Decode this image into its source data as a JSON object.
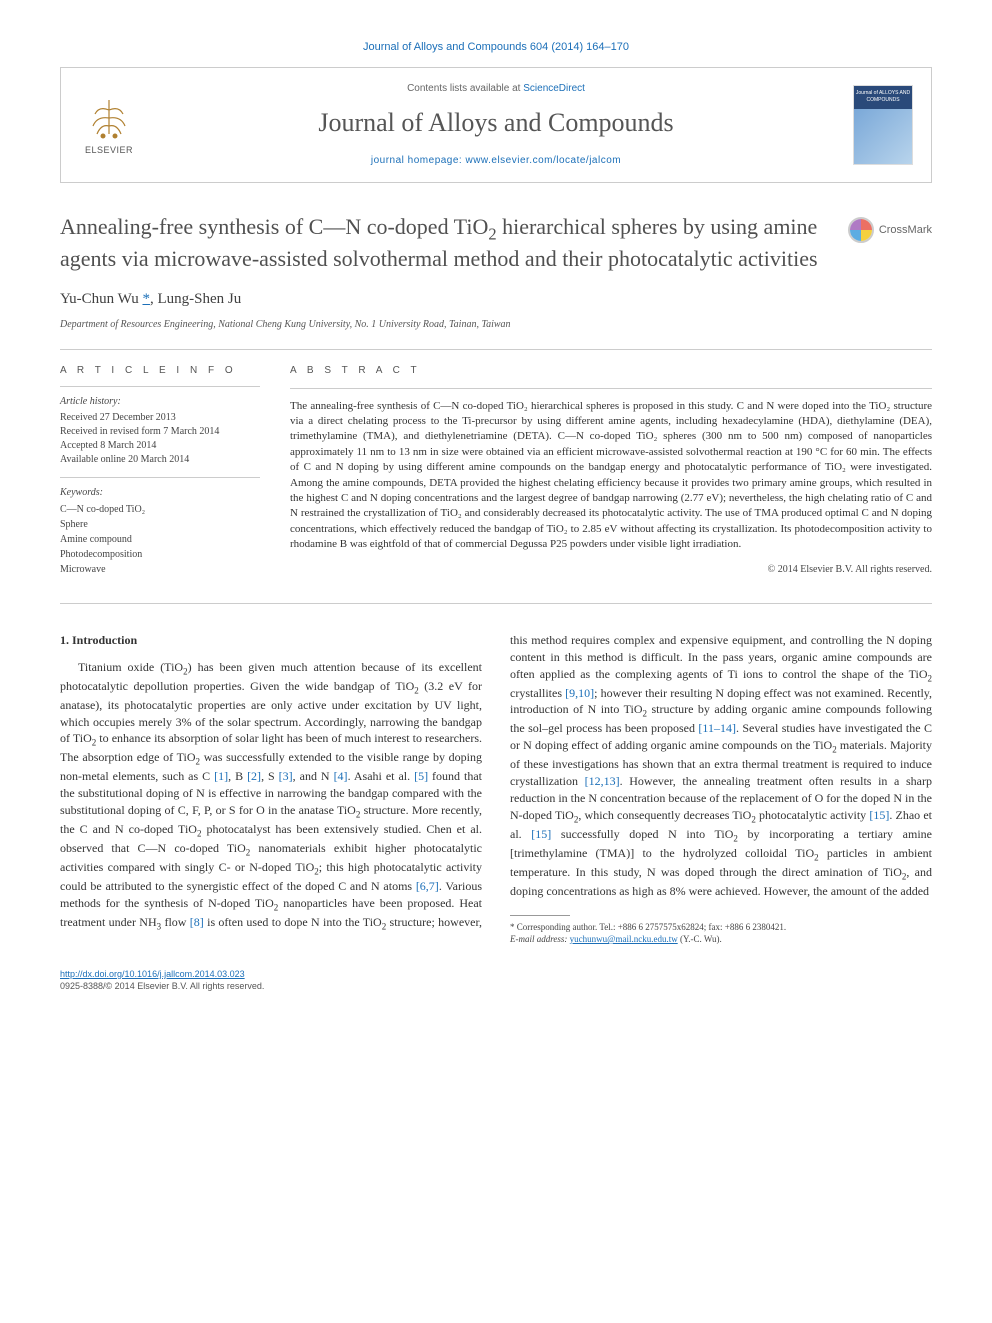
{
  "citation": "Journal of Alloys and Compounds 604 (2014) 164–170",
  "header": {
    "contents_prefix": "Contents lists available at ",
    "contents_link": "ScienceDirect",
    "journal_name": "Journal of Alloys and Compounds",
    "homepage": "journal homepage: www.elsevier.com/locate/jalcom",
    "publisher": "ELSEVIER",
    "cover_label": "Journal of ALLOYS AND COMPOUNDS"
  },
  "crossmark_label": "CrossMark",
  "title_parts": {
    "p1": "Annealing-free synthesis of C—N co-doped TiO",
    "p2": " hierarchical spheres by using amine agents via microwave-assisted solvothermal method and their photocatalytic activities"
  },
  "authors": {
    "a1": "Yu-Chun Wu ",
    "corr": "*",
    "a2": ", Lung-Shen Ju"
  },
  "affiliation": "Department of Resources Engineering, National Cheng Kung University, No. 1 University Road, Tainan, Taiwan",
  "info": {
    "heading": "A R T I C L E   I N F O",
    "history_label": "Article history:",
    "received": "Received 27 December 2013",
    "revised": "Received in revised form 7 March 2014",
    "accepted": "Accepted 8 March 2014",
    "online": "Available online 20 March 2014",
    "keywords_label": "Keywords:",
    "kw1": "C—N co-doped TiO₂",
    "kw2": "Sphere",
    "kw3": "Amine compound",
    "kw4": "Photodecomposition",
    "kw5": "Microwave"
  },
  "abstract": {
    "heading": "A B S T R A C T",
    "text": "The annealing-free synthesis of C—N co-doped TiO₂ hierarchical spheres is proposed in this study. C and N were doped into the TiO₂ structure via a direct chelating process to the Ti-precursor by using different amine agents, including hexadecylamine (HDA), diethylamine (DEA), trimethylamine (TMA), and diethylenetriamine (DETA). C—N co-doped TiO₂ spheres (300 nm to 500 nm) composed of nanoparticles approximately 11 nm to 13 nm in size were obtained via an efficient microwave-assisted solvothermal reaction at 190 °C for 60 min. The effects of C and N doping by using different amine compounds on the bandgap energy and photocatalytic performance of TiO₂ were investigated. Among the amine compounds, DETA provided the highest chelating efficiency because it provides two primary amine groups, which resulted in the highest C and N doping concentrations and the largest degree of bandgap narrowing (2.77 eV); nevertheless, the high chelating ratio of C and N restrained the crystallization of TiO₂ and considerably decreased its photocatalytic activity. The use of TMA produced optimal C and N doping concentrations, which effectively reduced the bandgap of TiO₂ to 2.85 eV without affecting its crystallization. Its photodecomposition activity to rhodamine B was eightfold of that of commercial Degussa P25 powders under visible light irradiation.",
    "copyright": "© 2014 Elsevier B.V. All rights reserved."
  },
  "section1_heading": "1. Introduction",
  "intro_html": "Titanium oxide (TiO<sub>2</sub>) has been given much attention because of its excellent photocatalytic depollution properties. Given the wide bandgap of TiO<sub>2</sub> (3.2 eV for anatase), its photocatalytic properties are only active under excitation by UV light, which occupies merely 3% of the solar spectrum. Accordingly, narrowing the bandgap of TiO<sub>2</sub> to enhance its absorption of solar light has been of much interest to researchers. The absorption edge of TiO<sub>2</sub> was successfully extended to the visible range by doping non-metal elements, such as C <span class=\"ref-link\">[1]</span>, B <span class=\"ref-link\">[2]</span>, S <span class=\"ref-link\">[3]</span>, and N <span class=\"ref-link\">[4]</span>. Asahi et al. <span class=\"ref-link\">[5]</span> found that the substitutional doping of N is effective in narrowing the bandgap compared with the substitutional doping of C, F, P, or S for O in the anatase TiO<sub>2</sub> structure. More recently, the C and N co-doped TiO<sub>2</sub> photocatalyst has been extensively studied. Chen et al. observed that C—N co-doped TiO<sub>2</sub> nanomaterials exhibit higher photocatalytic activities compared with singly C- or N-doped TiO<sub>2</sub>; this high photocatalytic activity could be attributed to the synergistic effect of the doped C and N atoms <span class=\"ref-link\">[6,7]</span>. Various methods for the synthesis of N-doped TiO<sub>2</sub> nanoparticles have been proposed. Heat treatment under NH<sub>3</sub> flow <span class=\"ref-link\">[8]</span> is often used to dope N into the TiO<sub>2</sub> structure; however, this method requires complex and expensive equipment, and controlling the N doping content in this method is difficult. In the pass years, organic amine compounds are often applied as the complexing agents of Ti ions to control the shape of the TiO<sub>2</sub> crystallites <span class=\"ref-link\">[9,10]</span>; however their resulting N doping effect was not examined. Recently, introduction of N into TiO<sub>2</sub> structure by adding organic amine compounds following the sol–gel process has been proposed <span class=\"ref-link\">[11–14]</span>. Several studies have investigated the C or N doping effect of adding organic amine compounds on the TiO<sub>2</sub> materials. Majority of these investigations has shown that an extra thermal treatment is required to induce crystallization <span class=\"ref-link\">[12,13]</span>. However, the annealing treatment often results in a sharp reduction in the N concentration because of the replacement of O for the doped N in the N-doped TiO<sub>2</sub>, which consequently decreases TiO<sub>2</sub> photocatalytic activity <span class=\"ref-link\">[15]</span>. Zhao et al. <span class=\"ref-link\">[15]</span> successfully doped N into TiO<sub>2</sub> by incorporating a tertiary amine [trimethylamine (TMA)] to the hydrolyzed colloidal TiO<sub>2</sub> particles in ambient temperature. In this study, N was doped through the direct amination of TiO<sub>2</sub>, and doping concentrations as high as 8% were achieved. However, the amount of the added",
  "footnote": {
    "line1": "* Corresponding author. Tel.: +886 6 2757575x62824; fax: +886 6 2380421.",
    "email_label": "E-mail address: ",
    "email": "yuchunwu@mail.ncku.edu.tw",
    "email_suffix": " (Y.-C. Wu)."
  },
  "doi": {
    "link": "http://dx.doi.org/10.1016/j.jallcom.2014.03.023",
    "issn": "0925-8388/© 2014 Elsevier B.V. All rights reserved."
  },
  "colors": {
    "link": "#1b6fb8",
    "text": "#333333",
    "muted": "#555555",
    "border": "#cccccc"
  }
}
